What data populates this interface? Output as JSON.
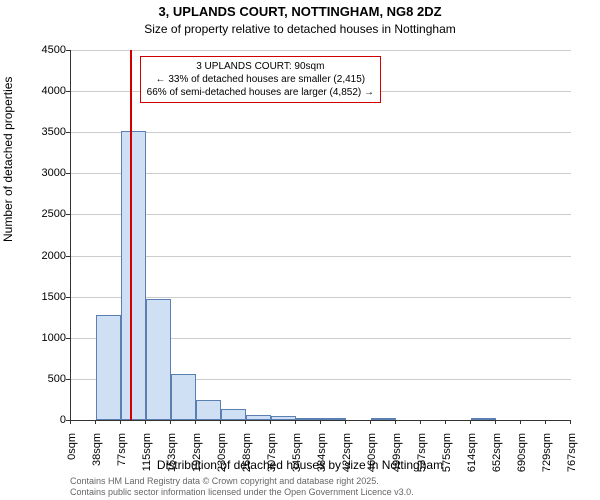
{
  "chart": {
    "type": "histogram",
    "title_main": "3, UPLANDS COURT, NOTTINGHAM, NG8 2DZ",
    "title_sub": "Size of property relative to detached houses in Nottingham",
    "y_axis_label": "Number of detached properties",
    "x_axis_label": "Distribution of detached houses by size in Nottingham",
    "background_color": "#ffffff",
    "grid_color": "#cccccc",
    "bar_fill": "#cfe0f5",
    "bar_stroke": "#5a7fb0",
    "ref_line_color": "#d00000",
    "annotation_border": "#d00000",
    "ylim": [
      0,
      4500
    ],
    "ytick_step": 500,
    "x_ticks": [
      "0sqm",
      "38sqm",
      "77sqm",
      "115sqm",
      "153sqm",
      "192sqm",
      "230sqm",
      "268sqm",
      "307sqm",
      "345sqm",
      "384sqm",
      "422sqm",
      "460sqm",
      "499sqm",
      "537sqm",
      "575sqm",
      "614sqm",
      "652sqm",
      "690sqm",
      "729sqm",
      "767sqm"
    ],
    "x_max": 767,
    "bars": [
      {
        "x_start": 38,
        "x_end": 77,
        "value": 1280
      },
      {
        "x_start": 77,
        "x_end": 115,
        "value": 3520
      },
      {
        "x_start": 115,
        "x_end": 153,
        "value": 1470
      },
      {
        "x_start": 153,
        "x_end": 192,
        "value": 560
      },
      {
        "x_start": 192,
        "x_end": 230,
        "value": 240
      },
      {
        "x_start": 230,
        "x_end": 268,
        "value": 130
      },
      {
        "x_start": 268,
        "x_end": 307,
        "value": 60
      },
      {
        "x_start": 307,
        "x_end": 345,
        "value": 45
      },
      {
        "x_start": 345,
        "x_end": 384,
        "value": 30
      },
      {
        "x_start": 384,
        "x_end": 422,
        "value": 20
      },
      {
        "x_start": 460,
        "x_end": 499,
        "value": 30
      },
      {
        "x_start": 614,
        "x_end": 652,
        "value": 15
      }
    ],
    "ref_line_x": 90,
    "annotation": {
      "line1": "3 UPLANDS COURT: 90sqm",
      "line2": "← 33% of detached houses are smaller (2,415)",
      "line3": "66% of semi-detached houses are larger (4,852) →"
    },
    "footer_line1": "Contains HM Land Registry data © Crown copyright and database right 2025.",
    "footer_line2": "Contains public sector information licensed under the Open Government Licence v3.0."
  }
}
